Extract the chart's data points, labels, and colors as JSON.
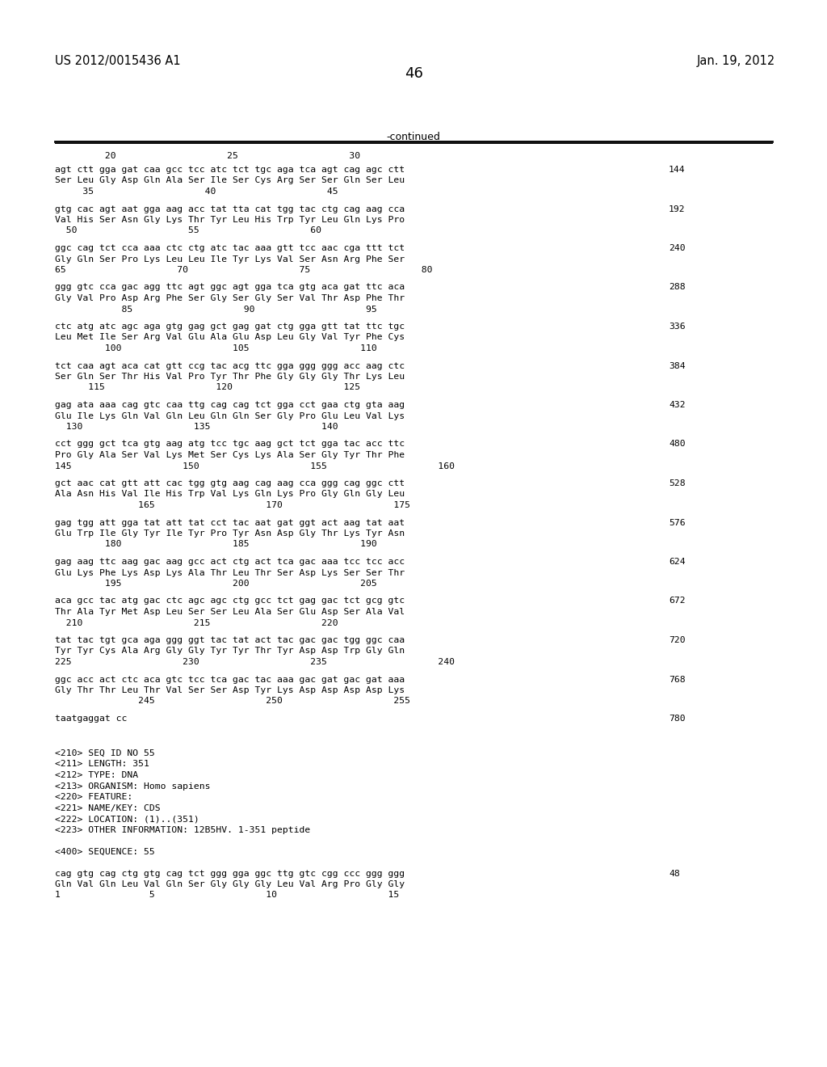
{
  "patent_number": "US 2012/0015436 A1",
  "date": "Jan. 19, 2012",
  "page_number": "46",
  "continued_label": "-continued",
  "background_color": "#ffffff",
  "text_color": "#000000",
  "sequence_blocks": [
    {
      "dna": "agt ctt gga gat caa gcc tcc atc tct tgc aga tca agt cag agc ctt",
      "aa": "Ser Leu Gly Asp Gln Ala Ser Ile Ser Cys Arg Ser Ser Gln Ser Leu",
      "pos": "     35                    40                    45",
      "num": "144"
    },
    {
      "dna": "gtg cac agt aat gga aag acc tat tta cat tgg tac ctg cag aag cca",
      "aa": "Val His Ser Asn Gly Lys Thr Tyr Leu His Trp Tyr Leu Gln Lys Pro",
      "pos": "  50                    55                    60",
      "num": "192"
    },
    {
      "dna": "ggc cag tct cca aaa ctc ctg atc tac aaa gtt tcc aac cga ttt tct",
      "aa": "Gly Gln Ser Pro Lys Leu Leu Ile Tyr Lys Val Ser Asn Arg Phe Ser",
      "pos": "65                    70                    75                    80",
      "num": "240"
    },
    {
      "dna": "ggg gtc cca gac agg ttc agt ggc agt gga tca gtg aca gat ttc aca",
      "aa": "Gly Val Pro Asp Arg Phe Ser Gly Ser Gly Ser Val Thr Asp Phe Thr",
      "pos": "            85                    90                    95",
      "num": "288"
    },
    {
      "dna": "ctc atg atc agc aga gtg gag gct gag gat ctg gga gtt tat ttc tgc",
      "aa": "Leu Met Ile Ser Arg Val Glu Ala Glu Asp Leu Gly Val Tyr Phe Cys",
      "pos": "         100                    105                    110",
      "num": "336"
    },
    {
      "dna": "tct caa agt aca cat gtt ccg tac acg ttc gga ggg ggg acc aag ctc",
      "aa": "Ser Gln Ser Thr His Val Pro Tyr Thr Phe Gly Gly Gly Thr Lys Leu",
      "pos": "      115                    120                    125",
      "num": "384"
    },
    {
      "dna": "gag ata aaa cag gtc caa ttg cag cag tct gga cct gaa ctg gta aag",
      "aa": "Glu Ile Lys Gln Val Gln Leu Gln Gln Ser Gly Pro Glu Leu Val Lys",
      "pos": "  130                    135                    140",
      "num": "432"
    },
    {
      "dna": "cct ggg gct tca gtg aag atg tcc tgc aag gct tct gga tac acc ttc",
      "aa": "Pro Gly Ala Ser Val Lys Met Ser Cys Lys Ala Ser Gly Tyr Thr Phe",
      "pos": "145                    150                    155                    160",
      "num": "480"
    },
    {
      "dna": "gct aac cat gtt att cac tgg gtg aag cag aag cca ggg cag ggc ctt",
      "aa": "Ala Asn His Val Ile His Trp Val Lys Gln Lys Pro Gly Gln Gly Leu",
      "pos": "               165                    170                    175",
      "num": "528"
    },
    {
      "dna": "gag tgg att gga tat att tat cct tac aat gat ggt act aag tat aat",
      "aa": "Glu Trp Ile Gly Tyr Ile Tyr Pro Tyr Asn Asp Gly Thr Lys Tyr Asn",
      "pos": "         180                    185                    190",
      "num": "576"
    },
    {
      "dna": "gag aag ttc aag gac aag gcc act ctg act tca gac aaa tcc tcc acc",
      "aa": "Glu Lys Phe Lys Asp Lys Ala Thr Leu Thr Ser Asp Lys Ser Ser Thr",
      "pos": "         195                    200                    205",
      "num": "624"
    },
    {
      "dna": "aca gcc tac atg gac ctc agc agc ctg gcc tct gag gac tct gcg gtc",
      "aa": "Thr Ala Tyr Met Asp Leu Ser Ser Leu Ala Ser Glu Asp Ser Ala Val",
      "pos": "  210                    215                    220",
      "num": "672"
    },
    {
      "dna": "tat tac tgt gca aga ggg ggt tac tat act tac gac gac tgg ggc caa",
      "aa": "Tyr Tyr Cys Ala Arg Gly Gly Tyr Tyr Thr Tyr Asp Asp Trp Gly Gln",
      "pos": "225                    230                    235                    240",
      "num": "720"
    },
    {
      "dna": "ggc acc act ctc aca gtc tcc tca gac tac aaa gac gat gac gat aaa",
      "aa": "Gly Thr Thr Leu Thr Val Ser Ser Asp Tyr Lys Asp Asp Asp Asp Lys",
      "pos": "               245                    250                    255",
      "num": "768"
    }
  ],
  "short_seq_dna": "taatgaggat cc",
  "short_seq_num": "780",
  "metadata_lines": [
    "<210> SEQ ID NO 55",
    "<211> LENGTH: 351",
    "<212> TYPE: DNA",
    "<213> ORGANISM: Homo sapiens",
    "<220> FEATURE:",
    "<221> NAME/KEY: CDS",
    "<222> LOCATION: (1)..(351)",
    "<223> OTHER INFORMATION: 12B5HV. 1-351 peptide"
  ],
  "seq400_label": "<400> SEQUENCE: 55",
  "final_block": {
    "dna": "cag gtg cag ctg gtg cag tct ggg gga ggc ttg gtc cgg ccc ggg ggg",
    "aa": "Gln Val Gln Leu Val Gln Ser Gly Gly Gly Leu Val Arg Pro Gly Gly",
    "pos": "1                5                    10                    15",
    "num": "48"
  }
}
